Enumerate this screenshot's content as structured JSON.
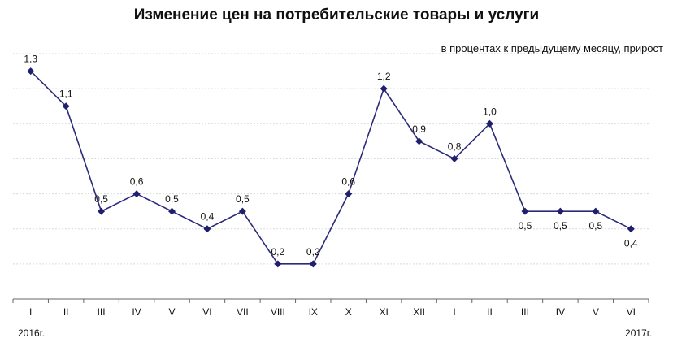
{
  "chart_data": {
    "type": "line",
    "title": "Изменение цен на потребительские товары и услуги",
    "subtitle": "в процентах к предыдущему месяцу, прирост",
    "categories": [
      "I",
      "II",
      "III",
      "IV",
      "V",
      "VI",
      "VII",
      "VIII",
      "IX",
      "X",
      "XI",
      "XII",
      "I",
      "II",
      "III",
      "IV",
      "V",
      "VI"
    ],
    "values": [
      1.3,
      1.1,
      0.5,
      0.6,
      0.5,
      0.4,
      0.5,
      0.2,
      0.2,
      0.6,
      1.2,
      0.9,
      0.8,
      1.0,
      0.5,
      0.5,
      0.5,
      0.4
    ],
    "data_labels": [
      "1,3",
      "1,1",
      "0,5",
      "0,6",
      "0,5",
      "0,4",
      "0,5",
      "0,2",
      "0,2",
      "0,6",
      "1,2",
      "0,9",
      "0,8",
      "1,0",
      "0,5",
      "0,5",
      "0,5",
      "0,4"
    ],
    "label_position": [
      "above",
      "above",
      "above",
      "above",
      "above",
      "above",
      "above",
      "above",
      "above",
      "above",
      "above",
      "above",
      "above",
      "above",
      "below",
      "below",
      "below",
      "below"
    ],
    "year_labels": {
      "start": "2016г.",
      "end": "2017г."
    },
    "ylim": [
      0,
      1.4
    ],
    "grid": true,
    "legend": "none",
    "colors": {
      "line": "#2b2b7a",
      "marker": "#1f1f6e",
      "grid": "#d9d9d9",
      "axis": "#666666"
    }
  }
}
